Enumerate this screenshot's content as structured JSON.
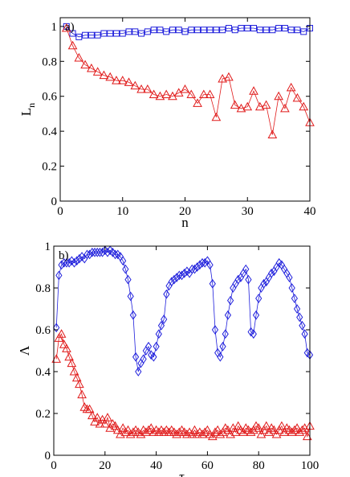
{
  "colors": {
    "blue": "#1f1fdc",
    "red": "#e01a1a",
    "axis": "#000000"
  },
  "chart_data": [
    {
      "type": "line",
      "panel_label": "a)",
      "xlabel": "n",
      "ylabel": "L",
      "ylabel_sub": "n",
      "xlim": [
        0,
        40
      ],
      "ylim": [
        0,
        1.05
      ],
      "xticks": [
        0,
        10,
        20,
        30,
        40
      ],
      "xtick_labels": [
        "0",
        "10",
        "20",
        "30",
        "40"
      ],
      "yticks": [
        0,
        0.2,
        0.4,
        0.6,
        0.8,
        1
      ],
      "ytick_labels": [
        "0",
        "0.2",
        "0.4",
        "0.6",
        "0.8",
        "1"
      ],
      "series": [
        {
          "marker": "square",
          "color": "#1f1fdc",
          "x": [
            1,
            2,
            3,
            4,
            5,
            6,
            7,
            8,
            9,
            10,
            11,
            12,
            13,
            14,
            15,
            16,
            17,
            18,
            19,
            20,
            21,
            22,
            23,
            24,
            25,
            26,
            27,
            28,
            29,
            30,
            31,
            32,
            33,
            34,
            35,
            36,
            37,
            38,
            39,
            40
          ],
          "y": [
            1.0,
            0.96,
            0.94,
            0.95,
            0.95,
            0.95,
            0.96,
            0.96,
            0.96,
            0.96,
            0.97,
            0.97,
            0.96,
            0.97,
            0.98,
            0.98,
            0.97,
            0.98,
            0.98,
            0.97,
            0.98,
            0.98,
            0.98,
            0.98,
            0.98,
            0.98,
            0.99,
            0.98,
            0.99,
            0.99,
            0.99,
            0.98,
            0.98,
            0.98,
            0.99,
            0.99,
            0.98,
            0.98,
            0.97,
            0.99
          ]
        },
        {
          "marker": "triangle",
          "color": "#e01a1a",
          "x": [
            1,
            2,
            3,
            4,
            5,
            6,
            7,
            8,
            9,
            10,
            11,
            12,
            13,
            14,
            15,
            16,
            17,
            18,
            19,
            20,
            21,
            22,
            23,
            24,
            25,
            26,
            27,
            28,
            29,
            30,
            31,
            32,
            33,
            34,
            35,
            36,
            37,
            38,
            39,
            40
          ],
          "y": [
            0.99,
            0.89,
            0.82,
            0.78,
            0.76,
            0.74,
            0.72,
            0.71,
            0.69,
            0.69,
            0.68,
            0.66,
            0.64,
            0.64,
            0.61,
            0.6,
            0.61,
            0.6,
            0.62,
            0.64,
            0.61,
            0.56,
            0.61,
            0.61,
            0.48,
            0.7,
            0.71,
            0.55,
            0.53,
            0.54,
            0.63,
            0.54,
            0.55,
            0.38,
            0.6,
            0.53,
            0.65,
            0.59,
            0.54,
            0.45
          ]
        }
      ]
    },
    {
      "type": "line",
      "panel_label": "b)",
      "xlabel": "τ",
      "ylabel": "Λ",
      "xlim": [
        0,
        100
      ],
      "ylim": [
        0,
        1
      ],
      "xticks": [
        0,
        20,
        40,
        60,
        80,
        100
      ],
      "xtick_labels": [
        "0",
        "20",
        "40",
        "60",
        "80",
        "100"
      ],
      "yticks": [
        0,
        0.2,
        0.4,
        0.6,
        0.8,
        1
      ],
      "ytick_labels": [
        "0",
        "0.2",
        "0.4",
        "0.6",
        "0.8",
        "1"
      ],
      "series": [
        {
          "marker": "diamond",
          "color": "#1f1fdc",
          "x": [
            1,
            2,
            3,
            4,
            5,
            6,
            7,
            8,
            9,
            10,
            11,
            12,
            13,
            14,
            15,
            16,
            17,
            18,
            19,
            20,
            21,
            22,
            23,
            24,
            25,
            26,
            27,
            28,
            29,
            30,
            31,
            32,
            33,
            34,
            35,
            36,
            37,
            38,
            39,
            40,
            41,
            42,
            43,
            44,
            45,
            46,
            47,
            48,
            49,
            50,
            51,
            52,
            53,
            54,
            55,
            56,
            57,
            58,
            59,
            60,
            61,
            62,
            63,
            64,
            65,
            66,
            67,
            68,
            69,
            70,
            71,
            72,
            73,
            74,
            75,
            76,
            77,
            78,
            79,
            80,
            81,
            82,
            83,
            84,
            85,
            86,
            87,
            88,
            89,
            90,
            91,
            92,
            93,
            94,
            95,
            96,
            97,
            98,
            99,
            100
          ],
          "y": [
            0.61,
            0.86,
            0.91,
            0.92,
            0.92,
            0.92,
            0.93,
            0.92,
            0.93,
            0.94,
            0.95,
            0.94,
            0.96,
            0.96,
            0.97,
            0.97,
            0.97,
            0.97,
            0.97,
            0.98,
            0.97,
            0.98,
            0.97,
            0.96,
            0.96,
            0.95,
            0.93,
            0.89,
            0.84,
            0.76,
            0.67,
            0.47,
            0.4,
            0.44,
            0.46,
            0.5,
            0.52,
            0.48,
            0.47,
            0.52,
            0.58,
            0.62,
            0.65,
            0.77,
            0.81,
            0.83,
            0.84,
            0.85,
            0.86,
            0.86,
            0.87,
            0.88,
            0.87,
            0.89,
            0.89,
            0.9,
            0.91,
            0.92,
            0.92,
            0.93,
            0.91,
            0.82,
            0.6,
            0.49,
            0.47,
            0.52,
            0.58,
            0.67,
            0.74,
            0.8,
            0.82,
            0.84,
            0.85,
            0.87,
            0.89,
            0.84,
            0.59,
            0.58,
            0.67,
            0.75,
            0.8,
            0.82,
            0.83,
            0.85,
            0.87,
            0.88,
            0.9,
            0.92,
            0.91,
            0.89,
            0.87,
            0.85,
            0.8,
            0.75,
            0.7,
            0.66,
            0.62,
            0.58,
            0.49,
            0.48
          ]
        },
        {
          "marker": "triangle",
          "color": "#e01a1a",
          "x": [
            1,
            2,
            3,
            4,
            5,
            6,
            7,
            8,
            9,
            10,
            11,
            12,
            13,
            14,
            15,
            16,
            17,
            18,
            19,
            20,
            21,
            22,
            23,
            24,
            25,
            26,
            27,
            28,
            29,
            30,
            31,
            32,
            33,
            34,
            35,
            36,
            37,
            38,
            39,
            40,
            41,
            42,
            43,
            44,
            45,
            46,
            47,
            48,
            49,
            50,
            51,
            52,
            53,
            54,
            55,
            56,
            57,
            58,
            59,
            60,
            61,
            62,
            63,
            64,
            65,
            66,
            67,
            68,
            69,
            70,
            71,
            72,
            73,
            74,
            75,
            76,
            77,
            78,
            79,
            80,
            81,
            82,
            83,
            84,
            85,
            86,
            87,
            88,
            89,
            90,
            91,
            92,
            93,
            94,
            95,
            96,
            97,
            98,
            99,
            100
          ],
          "y": [
            0.46,
            0.56,
            0.58,
            0.53,
            0.51,
            0.47,
            0.44,
            0.4,
            0.37,
            0.34,
            0.29,
            0.23,
            0.22,
            0.22,
            0.19,
            0.16,
            0.18,
            0.15,
            0.17,
            0.15,
            0.18,
            0.13,
            0.15,
            0.14,
            0.12,
            0.1,
            0.13,
            0.11,
            0.12,
            0.1,
            0.11,
            0.12,
            0.11,
            0.1,
            0.12,
            0.11,
            0.12,
            0.13,
            0.11,
            0.12,
            0.11,
            0.12,
            0.11,
            0.12,
            0.11,
            0.12,
            0.11,
            0.1,
            0.11,
            0.12,
            0.11,
            0.1,
            0.11,
            0.1,
            0.12,
            0.1,
            0.11,
            0.1,
            0.11,
            0.12,
            0.1,
            0.09,
            0.11,
            0.12,
            0.1,
            0.11,
            0.13,
            0.12,
            0.1,
            0.13,
            0.11,
            0.14,
            0.12,
            0.11,
            0.13,
            0.12,
            0.11,
            0.12,
            0.14,
            0.13,
            0.1,
            0.12,
            0.14,
            0.11,
            0.13,
            0.12,
            0.1,
            0.12,
            0.14,
            0.11,
            0.13,
            0.12,
            0.11,
            0.12,
            0.13,
            0.11,
            0.12,
            0.13,
            0.09,
            0.14
          ]
        }
      ]
    }
  ]
}
